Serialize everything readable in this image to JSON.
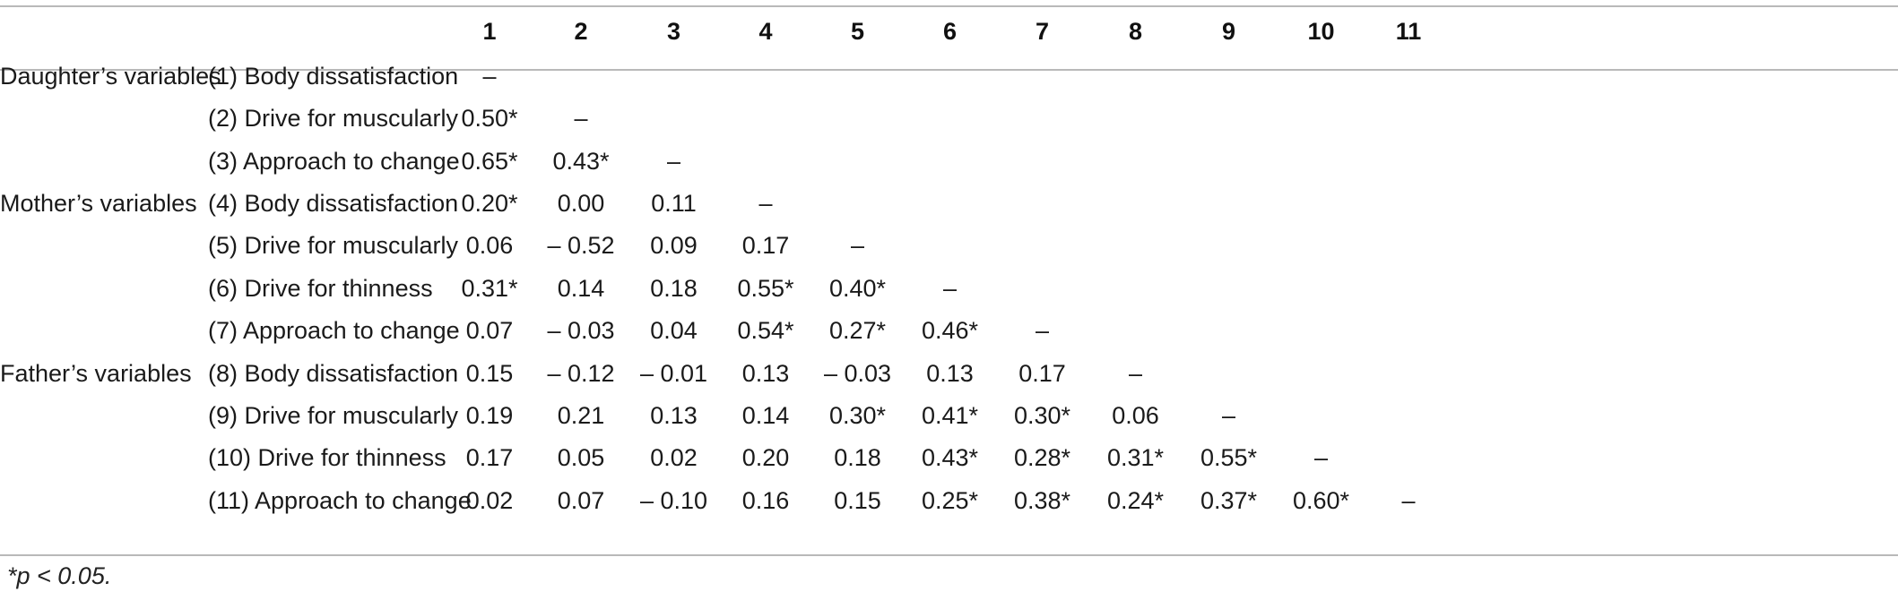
{
  "columns": [
    "1",
    "2",
    "3",
    "4",
    "5",
    "6",
    "7",
    "8",
    "9",
    "10",
    "11"
  ],
  "rows": [
    {
      "group": "Daughter’s variables",
      "variable": "(1) Body dissatisfaction",
      "values": [
        "–",
        "",
        "",
        "",
        "",
        "",
        "",
        "",
        "",
        "",
        ""
      ]
    },
    {
      "group": "",
      "variable": "(2) Drive for muscularly",
      "values": [
        "0.50*",
        "–",
        "",
        "",
        "",
        "",
        "",
        "",
        "",
        "",
        ""
      ]
    },
    {
      "group": "",
      "variable": "(3) Approach to change",
      "values": [
        "0.65*",
        "0.43*",
        "–",
        "",
        "",
        "",
        "",
        "",
        "",
        "",
        ""
      ]
    },
    {
      "group": "Mother’s variables",
      "variable": "(4) Body dissatisfaction",
      "values": [
        "0.20*",
        "0.00",
        "0.11",
        "–",
        "",
        "",
        "",
        "",
        "",
        "",
        ""
      ]
    },
    {
      "group": "",
      "variable": "(5) Drive for muscularly",
      "values": [
        "0.06",
        "– 0.52",
        "0.09",
        "0.17",
        "–",
        "",
        "",
        "",
        "",
        "",
        ""
      ]
    },
    {
      "group": "",
      "variable": "(6) Drive for thinness",
      "values": [
        "0.31*",
        "0.14",
        "0.18",
        "0.55*",
        "0.40*",
        "–",
        "",
        "",
        "",
        "",
        ""
      ]
    },
    {
      "group": "",
      "variable": "(7) Approach to change",
      "values": [
        "0.07",
        "– 0.03",
        "0.04",
        "0.54*",
        "0.27*",
        "0.46*",
        "–",
        "",
        "",
        "",
        ""
      ]
    },
    {
      "group": "Father’s variables",
      "variable": "(8) Body dissatisfaction",
      "values": [
        "0.15",
        "– 0.12",
        "– 0.01",
        "0.13",
        "– 0.03",
        "0.13",
        "0.17",
        "–",
        "",
        "",
        ""
      ]
    },
    {
      "group": "",
      "variable": "(9) Drive for muscularly",
      "values": [
        "0.19",
        "0.21",
        "0.13",
        "0.14",
        "0.30*",
        "0.41*",
        "0.30*",
        "0.06",
        "–",
        "",
        ""
      ]
    },
    {
      "group": "",
      "variable": "(10) Drive for thinness",
      "values": [
        "0.17",
        "0.05",
        "0.02",
        "0.20",
        "0.18",
        "0.43*",
        "0.28*",
        "0.31*",
        "0.55*",
        "–",
        ""
      ]
    },
    {
      "group": "",
      "variable": "(11) Approach to change",
      "values": [
        "0.02",
        "0.07",
        "– 0.10",
        "0.16",
        "0.15",
        "0.25*",
        "0.38*",
        "0.24*",
        "0.37*",
        "0.60*",
        "–"
      ]
    }
  ],
  "footnote": "*p < 0.05."
}
